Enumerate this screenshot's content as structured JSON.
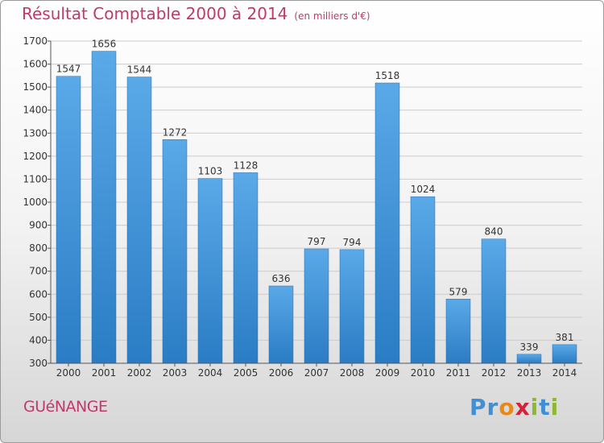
{
  "header": {
    "title": "Résultat Comptable 2000 à 2014",
    "unit": "(en milliers d'€)"
  },
  "footer": {
    "place": "GUéNANGE",
    "logo_letters": [
      {
        "char": "P",
        "color": "#3f8fd2"
      },
      {
        "char": "r",
        "color": "#3f8fd2"
      },
      {
        "char": "o",
        "color": "#e8891c"
      },
      {
        "char": "x",
        "color": "#d2233a"
      },
      {
        "char": "i",
        "color": "#8cb832"
      },
      {
        "char": "t",
        "color": "#3f8fd2"
      },
      {
        "char": "i",
        "color": "#8cb832"
      }
    ]
  },
  "colors": {
    "title": "#c0396b",
    "bar_top": "#5aa9e8",
    "bar_bottom": "#2a7cc4",
    "grid": "#cccccc",
    "text": "#333333"
  },
  "chart_data": {
    "type": "bar",
    "title": "Résultat Comptable 2000 à 2014",
    "subtitle": "(en milliers d'€)",
    "categories": [
      "2000",
      "2001",
      "2002",
      "2003",
      "2004",
      "2005",
      "2006",
      "2007",
      "2008",
      "2009",
      "2010",
      "2011",
      "2012",
      "2013",
      "2014"
    ],
    "values": [
      1547,
      1656,
      1544,
      1272,
      1103,
      1128,
      636,
      797,
      794,
      1518,
      1024,
      579,
      840,
      339,
      381
    ],
    "ylim": [
      300,
      1700
    ],
    "yticks": [
      300,
      400,
      500,
      600,
      700,
      800,
      900,
      1000,
      1100,
      1200,
      1300,
      1400,
      1500,
      1600,
      1700
    ],
    "grid": true,
    "data_labels": true
  }
}
